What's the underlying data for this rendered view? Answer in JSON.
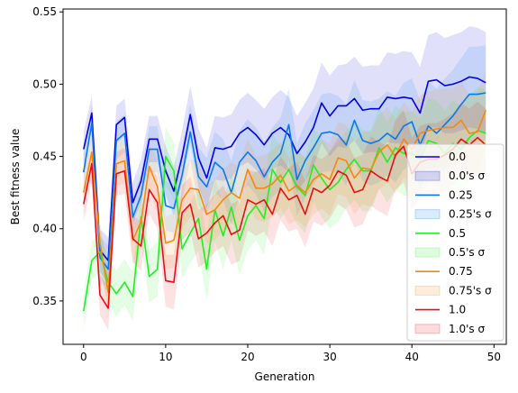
{
  "chart_data": {
    "type": "line",
    "xlabel": "Generation",
    "ylabel": "Best fitness value",
    "xlim": [
      -2.5,
      51.5
    ],
    "ylim": [
      0.32,
      0.552
    ],
    "xticks": [
      0,
      10,
      20,
      30,
      40,
      50
    ],
    "yticks": [
      0.35,
      0.4,
      0.45,
      0.5,
      0.55
    ],
    "ytick_labels": [
      "0.35",
      "0.40",
      "0.45",
      "0.50",
      "0.55"
    ],
    "grid": false,
    "legend_placement": "lower-right",
    "x": [
      0,
      1,
      2,
      3,
      4,
      5,
      6,
      7,
      8,
      9,
      10,
      11,
      12,
      13,
      14,
      15,
      16,
      17,
      18,
      19,
      20,
      21,
      22,
      23,
      24,
      25,
      26,
      27,
      28,
      29,
      30,
      31,
      32,
      33,
      34,
      35,
      36,
      37,
      38,
      39,
      40,
      41,
      42,
      43,
      44,
      45,
      46,
      47,
      48,
      49
    ],
    "series": [
      {
        "name": "0.0",
        "band_label": "0.0's σ",
        "color": "#0000dd",
        "values": [
          0.455,
          0.48,
          0.385,
          0.378,
          0.472,
          0.477,
          0.418,
          0.433,
          0.462,
          0.462,
          0.44,
          0.426,
          0.45,
          0.479,
          0.449,
          0.435,
          0.456,
          0.455,
          0.457,
          0.466,
          0.47,
          0.465,
          0.458,
          0.466,
          0.47,
          0.465,
          0.452,
          0.46,
          0.47,
          0.487,
          0.478,
          0.485,
          0.485,
          0.49,
          0.482,
          0.483,
          0.483,
          0.491,
          0.49,
          0.491,
          0.49,
          0.48,
          0.502,
          0.503,
          0.499,
          0.5,
          0.502,
          0.505,
          0.504,
          0.501
        ],
        "spread": [
          0.012,
          0.012,
          0.015,
          0.016,
          0.013,
          0.013,
          0.014,
          0.015,
          0.016,
          0.016,
          0.017,
          0.017,
          0.018,
          0.02,
          0.02,
          0.021,
          0.022,
          0.022,
          0.022,
          0.023,
          0.024,
          0.024,
          0.025,
          0.025,
          0.026,
          0.026,
          0.026,
          0.027,
          0.027,
          0.028,
          0.028,
          0.028,
          0.029,
          0.029,
          0.03,
          0.03,
          0.03,
          0.031,
          0.031,
          0.032,
          0.032,
          0.032,
          0.032,
          0.033,
          0.033,
          0.034,
          0.034,
          0.035,
          0.035,
          0.035
        ]
      },
      {
        "name": "0.25",
        "band_label": "0.25's σ",
        "color": "#0a78e6",
        "values": [
          0.439,
          0.473,
          0.38,
          0.372,
          0.461,
          0.466,
          0.408,
          0.423,
          0.455,
          0.455,
          0.416,
          0.414,
          0.437,
          0.467,
          0.436,
          0.429,
          0.446,
          0.441,
          0.425,
          0.446,
          0.453,
          0.447,
          0.436,
          0.446,
          0.452,
          0.472,
          0.434,
          0.447,
          0.456,
          0.466,
          0.467,
          0.465,
          0.458,
          0.475,
          0.461,
          0.459,
          0.461,
          0.466,
          0.462,
          0.471,
          0.474,
          0.458,
          0.471,
          0.466,
          0.472,
          0.478,
          0.486,
          0.493,
          0.493,
          0.494
        ],
        "spread": [
          0.012,
          0.013,
          0.015,
          0.016,
          0.013,
          0.013,
          0.014,
          0.015,
          0.016,
          0.016,
          0.017,
          0.017,
          0.018,
          0.019,
          0.02,
          0.02,
          0.021,
          0.021,
          0.022,
          0.022,
          0.023,
          0.023,
          0.024,
          0.024,
          0.025,
          0.025,
          0.025,
          0.026,
          0.026,
          0.027,
          0.027,
          0.027,
          0.028,
          0.028,
          0.028,
          0.029,
          0.029,
          0.029,
          0.03,
          0.03,
          0.03,
          0.031,
          0.031,
          0.031,
          0.032,
          0.032,
          0.032,
          0.033,
          0.033,
          0.033
        ]
      },
      {
        "name": "0.5",
        "band_label": "0.5's σ",
        "color": "#22ee22",
        "values": [
          0.343,
          0.378,
          0.384,
          0.363,
          0.355,
          0.363,
          0.353,
          0.408,
          0.367,
          0.372,
          0.45,
          0.44,
          0.386,
          0.397,
          0.407,
          0.372,
          0.413,
          0.395,
          0.415,
          0.392,
          0.409,
          0.416,
          0.407,
          0.441,
          0.432,
          0.441,
          0.429,
          0.423,
          0.444,
          0.435,
          0.427,
          0.432,
          0.441,
          0.448,
          0.44,
          0.44,
          0.456,
          0.446,
          0.456,
          0.452,
          0.452,
          0.448,
          0.461,
          0.459,
          0.452,
          0.459,
          0.455,
          0.463,
          0.468,
          0.466
        ],
        "spread": [
          0.012,
          0.013,
          0.014,
          0.015,
          0.016,
          0.016,
          0.017,
          0.018,
          0.018,
          0.019,
          0.02,
          0.02,
          0.021,
          0.021,
          0.022,
          0.022,
          0.022,
          0.023,
          0.023,
          0.024,
          0.024,
          0.024,
          0.025,
          0.025,
          0.025,
          0.026,
          0.026,
          0.026,
          0.026,
          0.027,
          0.027,
          0.027,
          0.027,
          0.028,
          0.028,
          0.028,
          0.028,
          0.028,
          0.029,
          0.029,
          0.029,
          0.029,
          0.029,
          0.03,
          0.03,
          0.03,
          0.03,
          0.03,
          0.03,
          0.03
        ]
      },
      {
        "name": "0.75",
        "band_label": "0.75's σ",
        "color": "#f5880e",
        "values": [
          0.425,
          0.453,
          0.39,
          0.356,
          0.445,
          0.447,
          0.392,
          0.405,
          0.443,
          0.429,
          0.39,
          0.392,
          0.42,
          0.428,
          0.427,
          0.41,
          0.413,
          0.42,
          0.425,
          0.421,
          0.441,
          0.428,
          0.428,
          0.431,
          0.437,
          0.426,
          0.43,
          0.425,
          0.434,
          0.438,
          0.434,
          0.449,
          0.447,
          0.435,
          0.442,
          0.441,
          0.453,
          0.458,
          0.45,
          0.462,
          0.455,
          0.466,
          0.468,
          0.469,
          0.47,
          0.47,
          0.475,
          0.466,
          0.467,
          0.482
        ],
        "spread": [
          0.012,
          0.013,
          0.014,
          0.015,
          0.015,
          0.016,
          0.016,
          0.017,
          0.017,
          0.018,
          0.018,
          0.019,
          0.019,
          0.02,
          0.02,
          0.02,
          0.021,
          0.021,
          0.021,
          0.022,
          0.022,
          0.022,
          0.023,
          0.023,
          0.023,
          0.023,
          0.024,
          0.024,
          0.024,
          0.024,
          0.025,
          0.025,
          0.025,
          0.025,
          0.025,
          0.026,
          0.026,
          0.026,
          0.026,
          0.026,
          0.026,
          0.027,
          0.027,
          0.027,
          0.027,
          0.027,
          0.027,
          0.027,
          0.028,
          0.028
        ]
      },
      {
        "name": "1.0",
        "band_label": "1.0's σ",
        "color": "#e60f0f",
        "values": [
          0.417,
          0.445,
          0.354,
          0.345,
          0.438,
          0.44,
          0.393,
          0.388,
          0.427,
          0.418,
          0.364,
          0.363,
          0.411,
          0.417,
          0.393,
          0.397,
          0.404,
          0.409,
          0.396,
          0.399,
          0.42,
          0.417,
          0.42,
          0.41,
          0.428,
          0.42,
          0.423,
          0.41,
          0.428,
          0.425,
          0.43,
          0.44,
          0.437,
          0.425,
          0.427,
          0.44,
          0.436,
          0.433,
          0.451,
          0.457,
          0.438,
          0.446,
          0.448,
          0.448,
          0.451,
          0.455,
          0.462,
          0.458,
          0.463,
          0.458
        ],
        "spread": [
          0.012,
          0.013,
          0.014,
          0.015,
          0.015,
          0.016,
          0.016,
          0.017,
          0.017,
          0.018,
          0.018,
          0.019,
          0.019,
          0.019,
          0.02,
          0.02,
          0.02,
          0.021,
          0.021,
          0.021,
          0.021,
          0.022,
          0.022,
          0.022,
          0.022,
          0.022,
          0.023,
          0.023,
          0.023,
          0.023,
          0.023,
          0.023,
          0.024,
          0.024,
          0.024,
          0.024,
          0.024,
          0.024,
          0.024,
          0.025,
          0.025,
          0.025,
          0.025,
          0.025,
          0.025,
          0.025,
          0.025,
          0.025,
          0.025,
          0.025
        ]
      }
    ]
  }
}
